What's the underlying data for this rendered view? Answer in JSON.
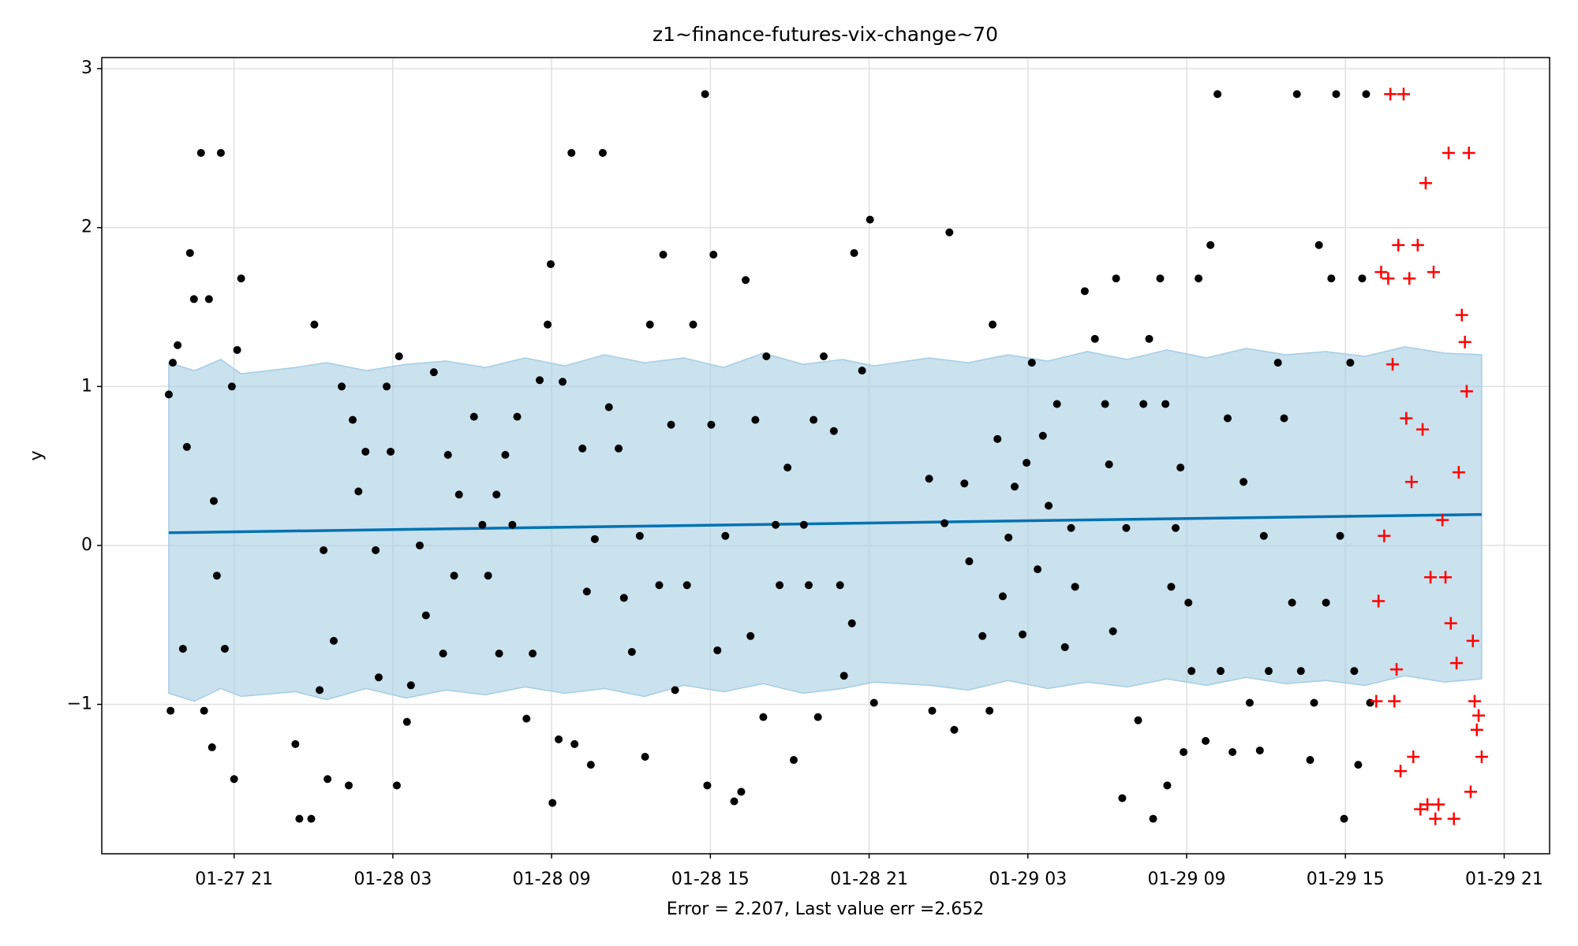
{
  "chart_data": {
    "type": "scatter",
    "title": "z1~finance-futures-vix-change~70",
    "xlabel": "Error = 2.207, Last value err =2.652",
    "ylabel": "y",
    "xlim": [
      "01-27 16:00",
      "01-29 22:43"
    ],
    "ylim": [
      -1.94,
      3.07
    ],
    "xticks": [
      "01-27 21",
      "01-28 03",
      "01-28 09",
      "01-28 15",
      "01-28 21",
      "01-29 03",
      "01-29 09",
      "01-29 15",
      "01-29 21"
    ],
    "yticks": [
      {
        "value": -1,
        "label": "−1"
      },
      0,
      1,
      2,
      3
    ],
    "grid": true,
    "series": [
      {
        "type": "band",
        "color": "#a6cde3",
        "x": [
          "01-27 18:32",
          "01-27 19:30",
          "01-27 20:30",
          "01-27 21:16",
          "01-27 23:19",
          "01-28 00:30",
          "01-28 02:00",
          "01-28 03:30",
          "01-28 05:00",
          "01-28 06:30",
          "01-28 08:00",
          "01-28 09:30",
          "01-28 11:00",
          "01-28 12:30",
          "01-28 14:00",
          "01-28 15:30",
          "01-28 17:00",
          "01-28 18:30",
          "01-28 20:00",
          "01-28 21:11",
          "01-28 23:16",
          "01-29 00:45",
          "01-29 02:15",
          "01-29 03:45",
          "01-29 05:15",
          "01-29 06:45",
          "01-29 08:15",
          "01-29 09:45",
          "01-29 11:15",
          "01-29 12:45",
          "01-29 14:15",
          "01-29 15:45",
          "01-29 17:15",
          "01-29 18:45",
          "01-29 20:09"
        ],
        "upper": [
          1.15,
          1.1,
          1.17,
          1.08,
          1.12,
          1.15,
          1.1,
          1.14,
          1.16,
          1.12,
          1.18,
          1.13,
          1.2,
          1.15,
          1.18,
          1.12,
          1.21,
          1.14,
          1.17,
          1.13,
          1.18,
          1.15,
          1.2,
          1.16,
          1.22,
          1.17,
          1.23,
          1.18,
          1.24,
          1.2,
          1.22,
          1.19,
          1.25,
          1.21,
          1.2
        ],
        "lower": [
          -0.93,
          -0.98,
          -0.9,
          -0.95,
          -0.92,
          -0.97,
          -0.9,
          -0.96,
          -0.91,
          -0.94,
          -0.89,
          -0.93,
          -0.9,
          -0.95,
          -0.88,
          -0.92,
          -0.87,
          -0.93,
          -0.9,
          -0.86,
          -0.88,
          -0.91,
          -0.85,
          -0.9,
          -0.86,
          -0.89,
          -0.84,
          -0.88,
          -0.83,
          -0.87,
          -0.85,
          -0.88,
          -0.82,
          -0.86,
          -0.84
        ]
      },
      {
        "type": "line",
        "color": "#0072b2",
        "x": [
          "01-27 18:32",
          "01-29 20:09"
        ],
        "values": [
          0.08,
          0.195
        ]
      },
      {
        "type": "scatter",
        "marker": "o",
        "color": "#000000",
        "x": [
          "01-27 18:32",
          "01-27 18:36",
          "01-27 18:41",
          "01-27 18:52",
          "01-27 19:04",
          "01-27 19:13",
          "01-27 19:20",
          "01-27 19:29",
          "01-27 19:45",
          "01-27 19:52",
          "01-27 20:03",
          "01-27 20:10",
          "01-27 20:14",
          "01-27 20:21",
          "01-27 20:30",
          "01-27 20:39",
          "01-27 20:55",
          "01-27 21:00",
          "01-27 21:07",
          "01-27 21:16",
          "01-27 23:19",
          "01-27 23:28",
          "01-27 23:55",
          "01-28 00:02",
          "01-28 00:14",
          "01-28 00:23",
          "01-28 00:32",
          "01-28 00:46",
          "01-28 01:04",
          "01-28 01:20",
          "01-28 01:29",
          "01-28 01:42",
          "01-28 01:58",
          "01-28 02:21",
          "01-28 02:28",
          "01-28 02:46",
          "01-28 02:55",
          "01-28 03:09",
          "01-28 03:14",
          "01-28 03:32",
          "01-28 03:41",
          "01-28 04:01",
          "01-28 04:15",
          "01-28 04:33",
          "01-28 04:54",
          "01-28 05:05",
          "01-28 05:19",
          "01-28 05:30",
          "01-28 06:04",
          "01-28 06:23",
          "01-28 06:36",
          "01-28 06:55",
          "01-28 07:01",
          "01-28 07:15",
          "01-28 07:31",
          "01-28 07:42",
          "01-28 08:03",
          "01-28 08:17",
          "01-28 08:33",
          "01-28 08:51",
          "01-28 08:58",
          "01-28 09:02",
          "01-28 09:16",
          "01-28 09:25",
          "01-28 09:45",
          "01-28 09:52",
          "01-28 10:10",
          "01-28 10:20",
          "01-28 10:29",
          "01-28 10:38",
          "01-28 10:56",
          "01-28 11:10",
          "01-28 11:32",
          "01-28 11:44",
          "01-28 12:02",
          "01-28 12:20",
          "01-28 12:32",
          "01-28 12:43",
          "01-28 13:04",
          "01-28 13:13",
          "01-28 13:31",
          "01-28 13:40",
          "01-28 14:07",
          "01-28 14:21",
          "01-28 14:48",
          "01-28 14:53",
          "01-28 15:02",
          "01-28 15:07",
          "01-28 15:16",
          "01-28 15:34",
          "01-28 15:54",
          "01-28 16:10",
          "01-28 16:20",
          "01-28 16:31",
          "01-28 16:42",
          "01-28 17:00",
          "01-28 17:07",
          "01-28 17:28",
          "01-28 17:37",
          "01-28 17:55",
          "01-28 18:09",
          "01-28 18:32",
          "01-28 18:43",
          "01-28 18:54",
          "01-28 19:04",
          "01-28 19:17",
          "01-28 19:40",
          "01-28 19:54",
          "01-28 20:03",
          "01-28 20:21",
          "01-28 20:26",
          "01-28 20:44",
          "01-28 21:02",
          "01-28 21:11",
          "01-28 23:16",
          "01-28 23:23",
          "01-28 23:51",
          "01-29 00:02",
          "01-29 00:13",
          "01-29 00:36",
          "01-29 00:47",
          "01-29 01:17",
          "01-29 01:33",
          "01-29 01:40",
          "01-29 01:51",
          "01-29 02:03",
          "01-29 02:16",
          "01-29 02:30",
          "01-29 02:48",
          "01-29 02:57",
          "01-29 03:09",
          "01-29 03:22",
          "01-29 03:34",
          "01-29 03:47",
          "01-29 04:06",
          "01-29 04:24",
          "01-29 04:38",
          "01-29 04:47",
          "01-29 05:09",
          "01-29 05:32",
          "01-29 05:55",
          "01-29 06:04",
          "01-29 06:13",
          "01-29 06:20",
          "01-29 06:34",
          "01-29 06:43",
          "01-29 07:10",
          "01-29 07:22",
          "01-29 07:35",
          "01-29 07:44",
          "01-29 08:00",
          "01-29 08:12",
          "01-29 08:16",
          "01-29 08:25",
          "01-29 08:35",
          "01-29 08:46",
          "01-29 08:53",
          "01-29 09:04",
          "01-29 09:11",
          "01-29 09:27",
          "01-29 09:43",
          "01-29 09:54",
          "01-29 10:10",
          "01-29 10:17",
          "01-29 10:33",
          "01-29 10:44",
          "01-29 11:09",
          "01-29 11:23",
          "01-29 11:46",
          "01-29 11:55",
          "01-29 12:06",
          "01-29 12:27",
          "01-29 12:41",
          "01-29 12:59",
          "01-29 13:10",
          "01-29 13:19",
          "01-29 13:40",
          "01-29 13:49",
          "01-29 14:00",
          "01-29 14:16",
          "01-29 14:28",
          "01-29 14:39",
          "01-29 14:48",
          "01-29 14:57",
          "01-29 15:11",
          "01-29 15:20",
          "01-29 15:29",
          "01-29 15:38",
          "01-29 15:47",
          "01-29 15:56"
        ],
        "values": [
          0.95,
          -1.04,
          1.15,
          1.26,
          -0.65,
          0.62,
          1.84,
          1.55,
          2.47,
          -1.04,
          1.55,
          -1.27,
          0.28,
          -0.19,
          2.47,
          -0.65,
          1.0,
          -1.47,
          1.23,
          1.68,
          -1.25,
          -1.72,
          -1.72,
          1.39,
          -0.91,
          -0.03,
          -1.47,
          -0.6,
          1.0,
          -1.51,
          0.79,
          0.34,
          0.59,
          -0.03,
          -0.83,
          1.0,
          0.59,
          -1.51,
          1.19,
          -1.11,
          -0.88,
          0.0,
          -0.44,
          1.09,
          -0.68,
          0.57,
          -0.19,
          0.32,
          0.81,
          0.13,
          -0.19,
          0.32,
          -0.68,
          0.57,
          0.13,
          0.81,
          -1.09,
          -0.68,
          1.04,
          1.39,
          1.77,
          -1.62,
          -1.22,
          1.03,
          2.47,
          -1.25,
          0.61,
          -0.29,
          -1.38,
          0.04,
          2.47,
          0.87,
          0.61,
          -0.33,
          -0.67,
          0.06,
          -1.33,
          1.39,
          -0.25,
          1.83,
          0.76,
          -0.91,
          -0.25,
          1.39,
          2.84,
          -1.51,
          0.76,
          1.83,
          -0.66,
          0.06,
          -1.61,
          -1.55,
          1.67,
          -0.57,
          0.79,
          -1.08,
          1.19,
          0.13,
          -0.25,
          0.49,
          -1.35,
          0.13,
          -0.25,
          0.79,
          -1.08,
          1.19,
          0.72,
          -0.25,
          -0.82,
          -0.49,
          1.84,
          1.1,
          2.05,
          -0.99,
          0.42,
          -1.04,
          0.14,
          1.97,
          -1.16,
          0.39,
          -0.1,
          -0.57,
          -1.04,
          1.39,
          0.67,
          -0.32,
          0.05,
          0.37,
          -0.56,
          0.52,
          1.15,
          -0.15,
          0.69,
          0.25,
          0.89,
          -0.64,
          0.11,
          -0.26,
          1.6,
          1.3,
          0.89,
          0.51,
          -0.54,
          1.68,
          -1.59,
          0.11,
          -1.1,
          0.89,
          1.3,
          -1.72,
          1.68,
          0.89,
          -1.51,
          -0.26,
          0.11,
          0.49,
          -1.3,
          -0.36,
          -0.79,
          1.68,
          -1.23,
          1.89,
          2.84,
          -0.79,
          0.8,
          -1.3,
          0.4,
          -0.99,
          -1.29,
          0.06,
          -0.79,
          1.15,
          0.8,
          -0.36,
          2.84,
          -0.79,
          -1.35,
          -0.99,
          1.89,
          -0.36,
          1.68,
          2.84,
          0.06,
          -1.72,
          1.15,
          -0.79,
          -1.38,
          1.68,
          2.84,
          -0.99
        ]
      },
      {
        "type": "scatter",
        "marker": "+",
        "color": "#ff0000",
        "x": [
          "01-29 16:10",
          "01-29 16:15",
          "01-29 16:21",
          "01-29 16:28",
          "01-29 16:37",
          "01-29 16:42",
          "01-29 16:47",
          "01-29 16:51",
          "01-29 16:56",
          "01-29 17:00",
          "01-29 17:05",
          "01-29 17:12",
          "01-29 17:18",
          "01-29 17:25",
          "01-29 17:30",
          "01-29 17:34",
          "01-29 17:44",
          "01-29 17:50",
          "01-29 17:55",
          "01-29 18:02",
          "01-29 18:06",
          "01-29 18:13",
          "01-29 18:20",
          "01-29 18:24",
          "01-29 18:31",
          "01-29 18:40",
          "01-29 18:47",
          "01-29 18:54",
          "01-29 18:59",
          "01-29 19:06",
          "01-29 19:12",
          "01-29 19:17",
          "01-29 19:24",
          "01-29 19:31",
          "01-29 19:35",
          "01-29 19:40",
          "01-29 19:44",
          "01-29 19:49",
          "01-29 19:53",
          "01-29 19:58",
          "01-29 20:02",
          "01-29 20:09"
        ],
        "values": [
          -0.98,
          -0.35,
          1.72,
          0.06,
          1.68,
          2.84,
          1.14,
          -0.98,
          -0.78,
          1.89,
          -1.42,
          2.84,
          0.8,
          1.68,
          0.4,
          -1.33,
          1.89,
          -1.66,
          0.73,
          2.28,
          -1.63,
          -0.2,
          1.72,
          -1.72,
          -1.63,
          0.16,
          -0.2,
          2.47,
          -0.49,
          -1.72,
          -0.74,
          0.46,
          1.45,
          1.28,
          0.97,
          2.47,
          -1.55,
          -0.6,
          -0.98,
          -1.16,
          -1.07,
          -1.33
        ]
      }
    ]
  }
}
